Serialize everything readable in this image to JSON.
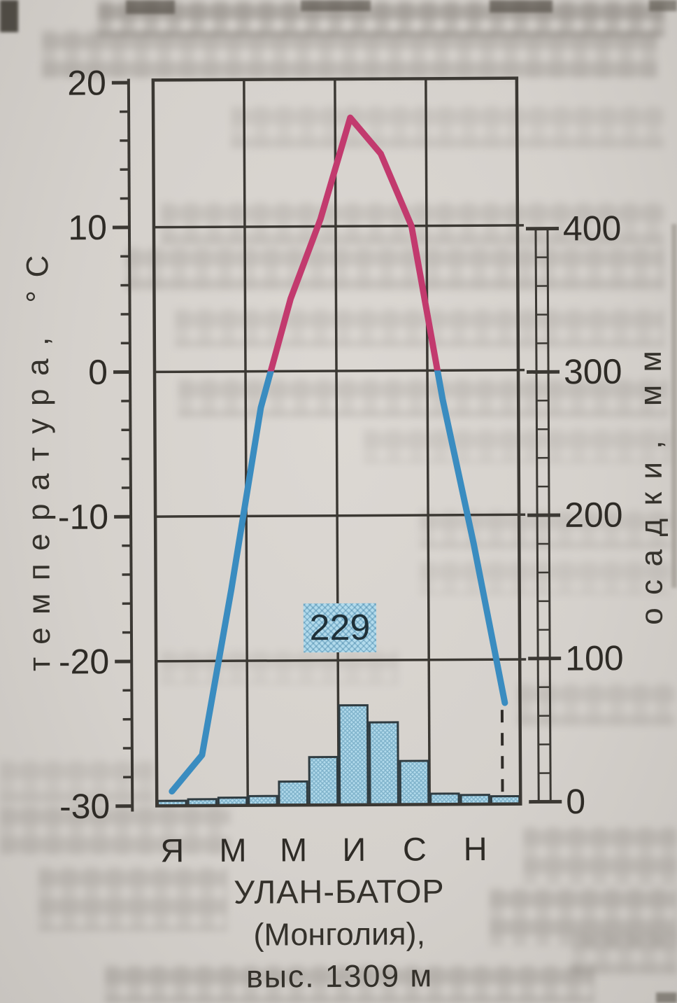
{
  "chart_data": {
    "type": "climograph (line + bar)",
    "title_lines": [
      "УЛАН-БАТОР",
      "(Монголия),",
      "выс. 1309 м"
    ],
    "month_axis_labels": [
      "Я",
      "М",
      "М",
      "И",
      "С",
      "Н"
    ],
    "temperature": {
      "axis_label": "температура, °С",
      "unit": "°С",
      "axis_ticks": [
        20,
        10,
        0,
        -10,
        -20,
        -30
      ],
      "ylim": [
        -30,
        20
      ],
      "values_by_month": [
        -29,
        -26.5,
        -15,
        -2.5,
        5,
        10.5,
        17.5,
        15,
        10,
        -2,
        -12,
        -23
      ]
    },
    "precipitation": {
      "axis_label": "осадки, мм",
      "unit": "мм",
      "axis_ticks": [
        400,
        300,
        200,
        100,
        0
      ],
      "ylim": [
        0,
        400
      ],
      "values_by_month": [
        2,
        3,
        4,
        5,
        15,
        32,
        68,
        56,
        29,
        6,
        5,
        4
      ],
      "annual_total_label": "229"
    },
    "legend_position": "none",
    "grid": "horizontal every 10°C, vertical quarterly"
  },
  "colors": {
    "paper": "#d8d4cf",
    "ink": "#2e2b26",
    "grid": "#3b3833",
    "line_above_zero": "#c23a6e",
    "line_below_zero": "#3a8cc0",
    "bar_fill": "#b3dbec",
    "bar_hatch": "#2d7296",
    "annotation_bg": "#b3dbec"
  }
}
